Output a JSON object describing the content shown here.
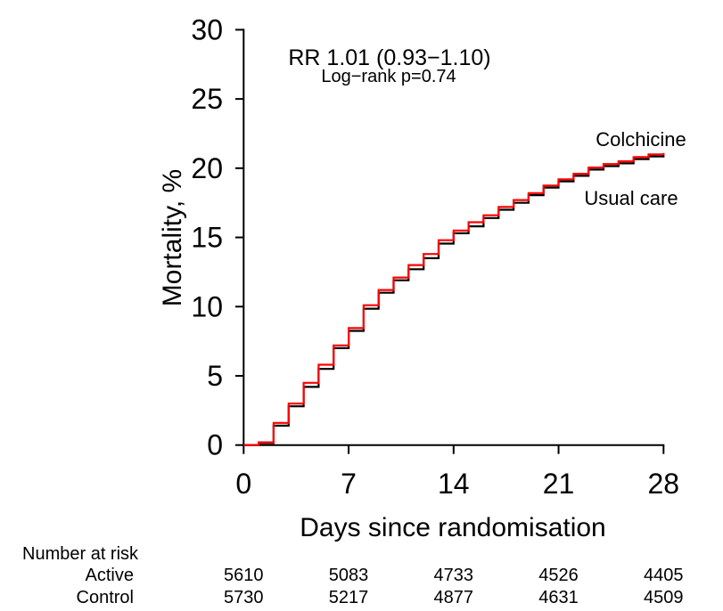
{
  "chart": {
    "annotation_rr": "RR 1.01 (0.93−1.10)",
    "annotation_logrank": "Log−rank p=0.74",
    "ylabel": "Mortality, %",
    "xlabel": "Days since randomisation",
    "series_labels": {
      "colchicine": "Colchicine",
      "usual_care": "Usual care"
    },
    "colors": {
      "colchicine": "#ff0000",
      "usual_care": "#000000"
    }
  },
  "chart_data": {
    "type": "line",
    "subtype": "kaplan-meier-step",
    "title": "",
    "xlabel": "Days since randomisation",
    "ylabel": "Mortality, %",
    "xlim": [
      0,
      28
    ],
    "ylim": [
      0,
      30
    ],
    "xticks": [
      0,
      7,
      14,
      21,
      28
    ],
    "yticks": [
      0,
      5,
      10,
      15,
      20,
      25,
      30
    ],
    "grid": false,
    "legend_position": "end-of-curve",
    "x": [
      0,
      1,
      2,
      3,
      4,
      5,
      6,
      7,
      8,
      9,
      10,
      11,
      12,
      13,
      14,
      15,
      16,
      17,
      18,
      19,
      20,
      21,
      22,
      23,
      24,
      25,
      26,
      27,
      28
    ],
    "series": [
      {
        "name": "Usual care",
        "color": "#000000",
        "values": [
          0,
          0.15,
          1.4,
          2.8,
          4.2,
          5.5,
          7.0,
          8.25,
          9.85,
          11.0,
          11.9,
          12.7,
          13.5,
          14.55,
          15.3,
          15.8,
          16.4,
          17.0,
          17.5,
          18.05,
          18.6,
          19.05,
          19.45,
          19.9,
          20.15,
          20.35,
          20.65,
          20.85,
          20.95
        ]
      },
      {
        "name": "Colchicine",
        "color": "#ff0000",
        "values": [
          0,
          0.2,
          1.6,
          3.0,
          4.5,
          5.8,
          7.2,
          8.45,
          10.1,
          11.2,
          12.1,
          13.0,
          13.8,
          14.8,
          15.5,
          16.1,
          16.6,
          17.2,
          17.7,
          18.2,
          18.75,
          19.2,
          19.6,
          20.05,
          20.3,
          20.5,
          20.8,
          21.0,
          21.1
        ]
      }
    ],
    "annotations": [
      "RR 1.01 (0.93−1.10)",
      "Log−rank p=0.74"
    ]
  },
  "risk_table": {
    "title": "Number at risk",
    "days": [
      0,
      7,
      14,
      21,
      28
    ],
    "rows": [
      {
        "label": "Active",
        "color": "#ff0000",
        "values": [
          "5610",
          "5083",
          "4733",
          "4526",
          "4405"
        ]
      },
      {
        "label": "Control",
        "color": "#000000",
        "values": [
          "5730",
          "5217",
          "4877",
          "4631",
          "4509"
        ]
      }
    ]
  }
}
